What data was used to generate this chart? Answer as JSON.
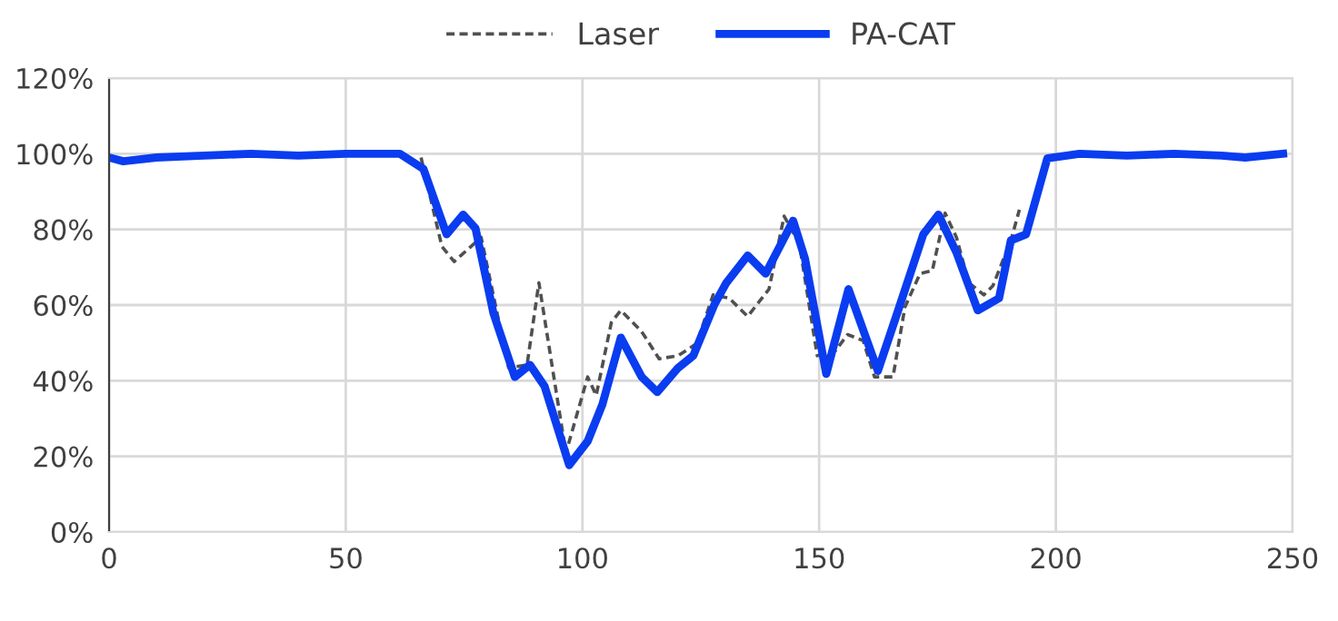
{
  "chart_data": {
    "type": "line",
    "xlim": [
      0,
      250
    ],
    "xticks": [
      0,
      50,
      100,
      150,
      200,
      250
    ],
    "ylim": [
      0,
      120
    ],
    "yticks": [
      {
        "value": 0,
        "label": "0%"
      },
      {
        "value": 20,
        "label": "20%"
      },
      {
        "value": 40,
        "label": "40%"
      },
      {
        "value": 60,
        "label": "60%"
      },
      {
        "value": 80,
        "label": "80%"
      },
      {
        "value": 100,
        "label": "100%"
      },
      {
        "value": 120,
        "label": "120%"
      }
    ],
    "grid": true,
    "legend": "top",
    "series": [
      {
        "name": "Laser",
        "color": "#505050",
        "line_style": "dashed",
        "x": [
          65.9,
          70.3,
          72.9,
          78.6,
          84.4,
          88.3,
          90.8,
          96.5,
          101.1,
          102.9,
          106.1,
          108.1,
          112.5,
          116.2,
          120.2,
          124.1,
          127.6,
          131,
          134.9,
          139.4,
          142.6,
          145.8,
          149.6,
          153.5,
          156,
          159.3,
          161.7,
          165.6,
          168.1,
          171.3,
          173.9,
          176.6,
          179,
          181.6,
          184.8,
          186.7,
          190.5,
          192.3
        ],
        "values": [
          99,
          75.5,
          71.5,
          77.9,
          43.4,
          44.2,
          65.9,
          20.9,
          41,
          36.1,
          55.4,
          58.6,
          53,
          45.8,
          46.6,
          49.8,
          62.7,
          61.8,
          57,
          64.2,
          83.5,
          76.3,
          46.6,
          48,
          52.2,
          50.6,
          41,
          41,
          59.4,
          68.3,
          69.1,
          84.3,
          77.9,
          65.9,
          62.7,
          65.1,
          77.1,
          85.2
        ]
      },
      {
        "name": "PA-CAT",
        "color": "#0a3cf0",
        "line_style": "solid",
        "x": [
          0,
          3,
          10,
          20,
          30,
          40,
          50,
          61.4,
          66.4,
          71.3,
          74.8,
          77.4,
          81.2,
          85.7,
          88.9,
          92,
          97.2,
          101.1,
          104.2,
          108.1,
          112.5,
          115.8,
          120.2,
          123.4,
          127.9,
          130.4,
          134.9,
          138.7,
          144.5,
          147,
          151.5,
          156.2,
          162.4,
          166.9,
          172,
          175.2,
          179,
          183.5,
          188,
          190.5,
          193.7,
          198.2,
          205,
          215,
          225,
          235,
          240,
          248
        ],
        "values": [
          99,
          98,
          99,
          99.5,
          100,
          99.5,
          100,
          100,
          96,
          78.7,
          83.9,
          80.3,
          57.8,
          41,
          44.2,
          38.5,
          17.7,
          24,
          33.7,
          51.4,
          41,
          37,
          43.4,
          46.6,
          60.2,
          65.9,
          73.1,
          68.3,
          82.3,
          72.3,
          41.8,
          64.2,
          42.6,
          59.4,
          78.7,
          83.9,
          73.9,
          58.6,
          61.8,
          77.1,
          78.7,
          98.8,
          100,
          99.5,
          100,
          99.5,
          99,
          100
        ]
      }
    ]
  }
}
